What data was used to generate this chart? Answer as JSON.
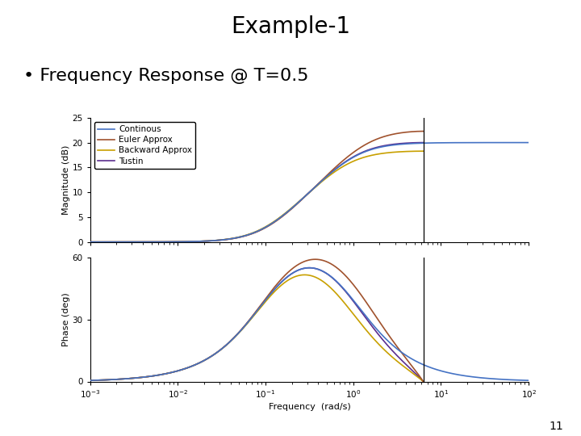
{
  "title": "Example-1",
  "bullet": "Frequency Response @ T=0.5",
  "T": 0.5,
  "freq_min": 0.001,
  "freq_max": 100.0,
  "mag_ylim": [
    0,
    25
  ],
  "phase_ylim": [
    0,
    60
  ],
  "mag_yticks": [
    0,
    5,
    10,
    15,
    20,
    25
  ],
  "phase_yticks": [
    0,
    30,
    60
  ],
  "xlabel": "Frequency  (rad/s)",
  "ylabel_mag": "Magnitude (dB)",
  "ylabel_phase": "Phase (deg)",
  "legend_labels": [
    "Continous",
    "Euler Approx",
    "Backward Approx",
    "Tustin"
  ],
  "colors": {
    "continuous": "#4472C4",
    "euler": "#A0522D",
    "backward": "#C8A000",
    "tustin": "#5B2D8E"
  },
  "page_number": "11",
  "background_color": "#FFFFFF",
  "title_fontsize": 20,
  "bullet_fontsize": 16,
  "axis_label_fontsize": 8,
  "tick_fontsize": 7.5,
  "legend_fontsize": 7.5
}
